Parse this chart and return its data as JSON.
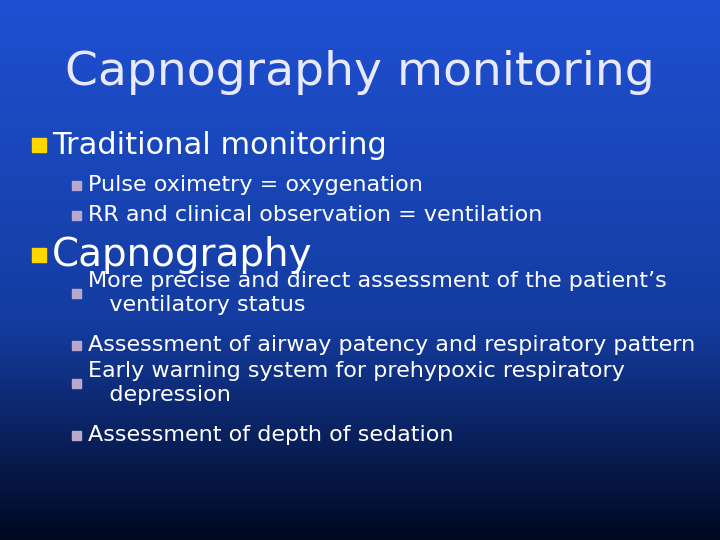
{
  "title": "Capnography monitoring",
  "title_fontsize": 34,
  "title_color": "#E8E8FF",
  "title_fontweight": "normal",
  "bg_top_color": "#000820",
  "bg_bottom_color": "#1a4acc",
  "bullet1_text": "Traditional monitoring",
  "bullet1_marker_color": "#FFD700",
  "bullet1_fontsize": 22,
  "sub_bullet_color": "#B8A8CC",
  "sub_bullet_fontsize": 16,
  "sub_bullets_1": [
    "Pulse oximetry = oxygenation",
    "RR and clinical observation = ventilation"
  ],
  "bullet2_text": "Capnography",
  "bullet2_marker_color": "#FFD700",
  "bullet2_fontsize": 28,
  "sub_bullets_2_line1": [
    "More precise and direct assessment of the patient’s",
    "   ventilatory status"
  ],
  "sub_bullets_2_line2": [
    "Assessment of airway patency and respiratory pattern"
  ],
  "sub_bullets_2_line3": [
    "Early warning system for prehypoxic respiratory",
    "   depression"
  ],
  "sub_bullets_2_line4": [
    "Assessment of depth of sedation"
  ],
  "text_color": "#FFFFFF",
  "sub_bullet_fontsize2": 16
}
